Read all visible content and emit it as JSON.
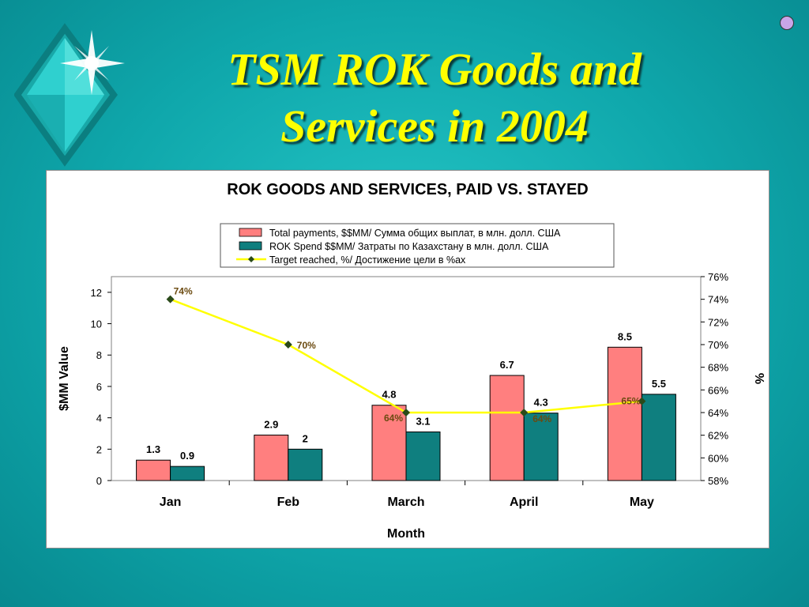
{
  "slide": {
    "title_line1": "TSM ROK Goods and",
    "title_line2": "Services in 2004",
    "title_color": "#ffff00",
    "background_color": "#12b0b3"
  },
  "chart_data": {
    "type": "bar",
    "title": "ROK GOODS AND SERVICES, PAID VS. STAYED",
    "xlabel": "Month",
    "ylabel": "$MM Value",
    "y2label": "%",
    "categories": [
      "Jan",
      "Feb",
      "March",
      "April",
      "May"
    ],
    "ylim": [
      0,
      13
    ],
    "yticks": [
      0,
      2,
      4,
      6,
      8,
      10,
      12
    ],
    "y2lim": [
      58,
      76
    ],
    "y2ticks": [
      "58%",
      "60%",
      "62%",
      "64%",
      "66%",
      "68%",
      "70%",
      "72%",
      "74%",
      "76%"
    ],
    "legend_position": "top-center",
    "series": [
      {
        "name": "Total payments, $$MM/ Сумма общих выплат, в млн. долл. США",
        "type": "bar",
        "color": "#ff7f7f",
        "values": [
          1.3,
          2.9,
          4.8,
          6.7,
          8.5
        ],
        "labels": [
          "1.3",
          "2.9",
          "4.8",
          "6.7",
          "8.5"
        ]
      },
      {
        "name": "ROK Spend $$MM/ Затраты по Казахстану в млн. долл. США",
        "type": "bar",
        "color": "#0f7f7f",
        "values": [
          0.9,
          2,
          3.1,
          4.3,
          5.5
        ],
        "labels": [
          "0.9",
          "2",
          "3.1",
          "4.3",
          "5.5"
        ]
      },
      {
        "name": "Target reached, %/  Достижение цели в %ах",
        "type": "line",
        "axis": "right",
        "color": "#ffff00",
        "marker_color": "#2a4a1a",
        "values": [
          74,
          70,
          64,
          64,
          65
        ],
        "labels": [
          "74%",
          "70%",
          "64%",
          "64%",
          "65%"
        ]
      }
    ]
  }
}
